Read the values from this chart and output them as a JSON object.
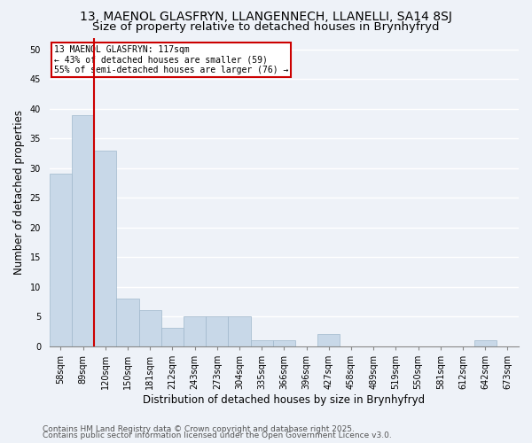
{
  "title1": "13, MAENOL GLASFRYN, LLANGENNECH, LLANELLI, SA14 8SJ",
  "title2": "Size of property relative to detached houses in Brynhyfryd",
  "xlabel": "Distribution of detached houses by size in Brynhyfryd",
  "ylabel": "Number of detached properties",
  "categories": [
    "58sqm",
    "89sqm",
    "120sqm",
    "150sqm",
    "181sqm",
    "212sqm",
    "243sqm",
    "273sqm",
    "304sqm",
    "335sqm",
    "366sqm",
    "396sqm",
    "427sqm",
    "458sqm",
    "489sqm",
    "519sqm",
    "550sqm",
    "581sqm",
    "612sqm",
    "642sqm",
    "673sqm"
  ],
  "values": [
    29,
    39,
    33,
    8,
    6,
    3,
    5,
    5,
    5,
    1,
    1,
    0,
    2,
    0,
    0,
    0,
    0,
    0,
    0,
    1,
    0
  ],
  "bar_color": "#c8d8e8",
  "bar_edgecolor": "#a0b8cc",
  "red_line_index": 2,
  "annotation_text": "13 MAENOL GLASFRYN: 117sqm\n← 43% of detached houses are smaller (59)\n55% of semi-detached houses are larger (76) →",
  "annotation_box_color": "#ffffff",
  "annotation_box_edgecolor": "#cc0000",
  "ylim": [
    0,
    52
  ],
  "yticks": [
    0,
    5,
    10,
    15,
    20,
    25,
    30,
    35,
    40,
    45,
    50
  ],
  "background_color": "#eef2f8",
  "grid_color": "#ffffff",
  "footer1": "Contains HM Land Registry data © Crown copyright and database right 2025.",
  "footer2": "Contains public sector information licensed under the Open Government Licence v3.0.",
  "red_line_color": "#cc0000",
  "title_fontsize": 10,
  "subtitle_fontsize": 9.5,
  "tick_fontsize": 7,
  "label_fontsize": 8.5,
  "footer_fontsize": 6.5
}
